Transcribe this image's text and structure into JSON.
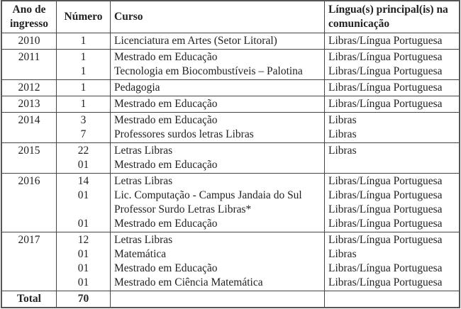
{
  "headers": {
    "ano": "Ano de ingresso",
    "numero": "Número",
    "curso": "Curso",
    "lingua": "Língua(s) principal(is) na comunicação"
  },
  "rows": [
    {
      "ano": "2010",
      "lines": [
        {
          "numero": "1",
          "curso": "Licenciatura em Artes (Setor Litoral)",
          "lingua": "Libras/Língua Portuguesa"
        }
      ]
    },
    {
      "ano": "2011",
      "lines": [
        {
          "numero": "1",
          "curso": "Mestrado em Educação",
          "lingua": "Libras/Língua Portuguesa"
        },
        {
          "numero": "1",
          "curso": "Tecnologia em Biocombustíveis – Palotina",
          "lingua": "Libras/Língua Portuguesa"
        }
      ]
    },
    {
      "ano": "2012",
      "lines": [
        {
          "numero": "1",
          "curso": "Pedagogia",
          "lingua": "Libras/Língua Portuguesa"
        }
      ]
    },
    {
      "ano": "2013",
      "lines": [
        {
          "numero": "1",
          "curso": "Mestrado em Educação",
          "lingua": "Libras/Língua Portuguesa"
        }
      ]
    },
    {
      "ano": "2014",
      "lines": [
        {
          "numero": "3",
          "curso": "Mestrado em Educação",
          "lingua": "Libras"
        },
        {
          "numero": "7",
          "curso": "Professores surdos letras Libras",
          "lingua": "Libras"
        }
      ]
    },
    {
      "ano": "2015",
      "lines": [
        {
          "numero": "22",
          "curso": "Letras Libras",
          "lingua": "Libras"
        },
        {
          "numero": "01",
          "curso": "Mestrado em Educação",
          "lingua": ""
        }
      ]
    },
    {
      "ano": "2016",
      "lines": [
        {
          "numero": "14",
          "curso": "Letras Libras",
          "lingua": "Libras/Língua Portuguesa"
        },
        {
          "numero": "01",
          "curso": "Lic. Computação - Campus Jandaia do Sul",
          "lingua": "Libras/Língua Portuguesa"
        },
        {
          "numero": "",
          "curso": "Professor Surdo Letras Libras*",
          "lingua": "Libras/Língua Portuguesa"
        },
        {
          "numero": "01",
          "curso": "Mestrado em Educação",
          "lingua": "Libras/Língua Portuguesa"
        }
      ]
    },
    {
      "ano": "2017",
      "lines": [
        {
          "numero": "12",
          "curso": "Letras Libras",
          "lingua": "Libras/Língua Portuguesa"
        },
        {
          "numero": "01",
          "curso": "Matemática",
          "lingua": "Libras"
        },
        {
          "numero": "01",
          "curso": "Mestrado em Educação",
          "lingua": "Libras/Língua Portuguesa"
        },
        {
          "numero": "01",
          "curso": "Mestrado em Ciência Matemática",
          "lingua": "Libras/Língua Portuguesa"
        }
      ]
    }
  ],
  "total": {
    "label": "Total",
    "value": "70"
  }
}
